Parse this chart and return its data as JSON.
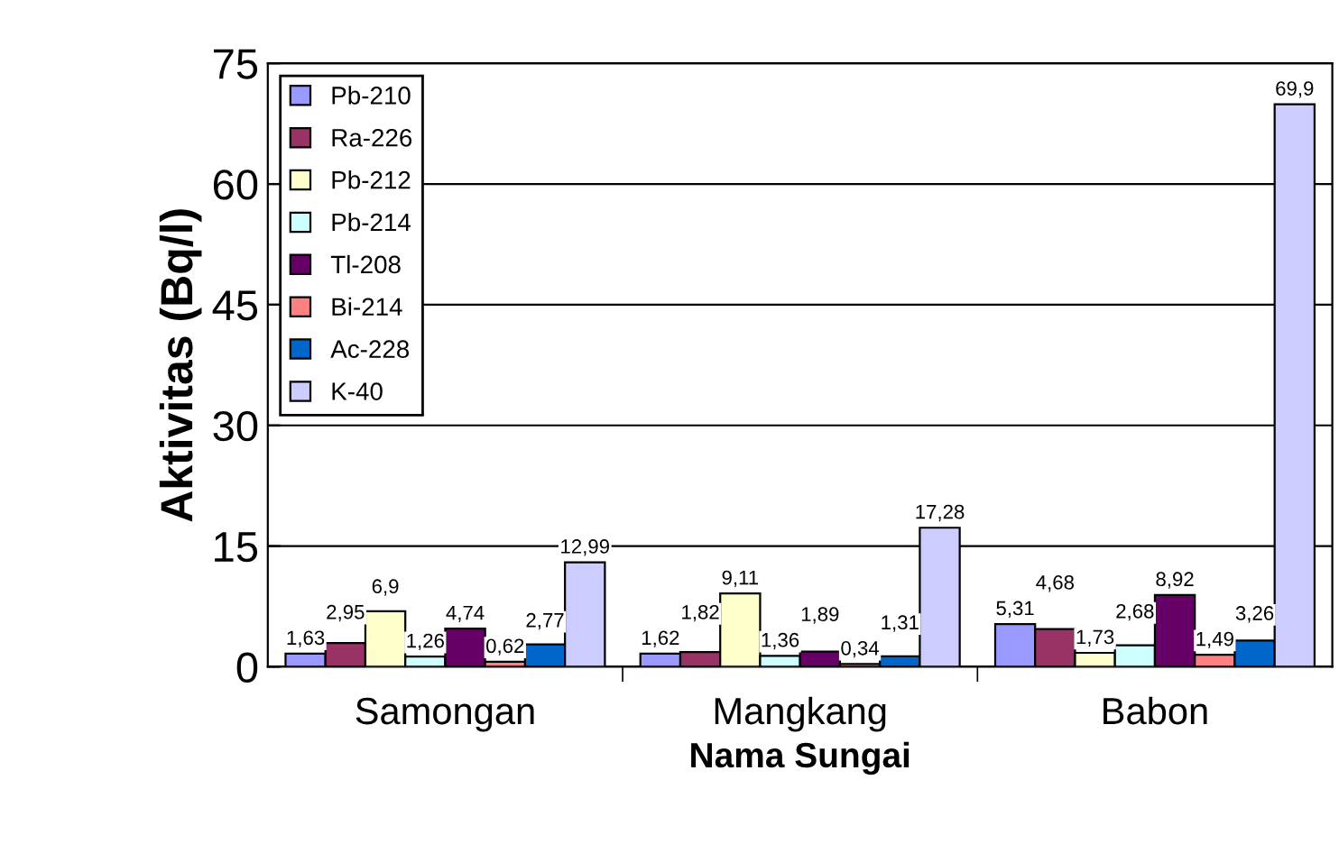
{
  "chart_data": {
    "type": "bar",
    "xlabel": "Nama Sungai",
    "ylabel": "Aktivitas (Bq/l)",
    "categories": [
      "Samongan",
      "Mangkang",
      "Babon"
    ],
    "series": [
      {
        "name": "Pb-210",
        "color": "#9999ff",
        "values": [
          1.63,
          1.62,
          5.31
        ],
        "value_labels": [
          "1,63",
          "1,62",
          "5,31"
        ]
      },
      {
        "name": "Ra-226",
        "color": "#993366",
        "values": [
          2.95,
          1.82,
          4.68
        ],
        "value_labels": [
          "2,95",
          "1,82",
          "4,68"
        ]
      },
      {
        "name": "Pb-212",
        "color": "#ffffcc",
        "values": [
          6.9,
          9.11,
          1.73
        ],
        "value_labels": [
          "6,9",
          "9,11",
          "1,73"
        ]
      },
      {
        "name": "Pb-214",
        "color": "#ccffff",
        "values": [
          1.26,
          1.36,
          2.68
        ],
        "value_labels": [
          "1,26",
          "1,36",
          "2,68"
        ]
      },
      {
        "name": "Tl-208",
        "color": "#660066",
        "values": [
          4.74,
          1.89,
          8.92
        ],
        "value_labels": [
          "4,74",
          "1,89",
          "8,92"
        ]
      },
      {
        "name": "Bi-214",
        "color": "#ff8080",
        "values": [
          0.62,
          0.34,
          1.49
        ],
        "value_labels": [
          "0,62",
          "0,34",
          "1,49"
        ]
      },
      {
        "name": "Ac-228",
        "color": "#0066cc",
        "values": [
          2.77,
          1.31,
          3.26
        ],
        "value_labels": [
          "2,77",
          "1,31",
          "3,26"
        ]
      },
      {
        "name": "K-40",
        "color": "#ccccff",
        "values": [
          12.99,
          17.28,
          69.9
        ],
        "value_labels": [
          "12,99",
          "17,28",
          "69,9"
        ]
      }
    ],
    "ylim": [
      0,
      75
    ],
    "yticks": [
      0,
      15,
      30,
      45,
      60,
      75
    ],
    "grid": "y",
    "legend": "top left"
  }
}
